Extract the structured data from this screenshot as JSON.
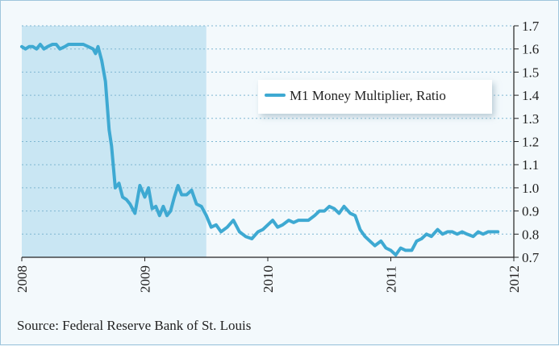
{
  "chart_data": {
    "type": "line",
    "series": [
      {
        "name": "M1 Money Multiplier, Ratio",
        "color": "#3ea9d2",
        "x": [
          2008.0,
          2008.03,
          2008.06,
          2008.09,
          2008.12,
          2008.15,
          2008.18,
          2008.21,
          2008.25,
          2008.28,
          2008.31,
          2008.35,
          2008.38,
          2008.42,
          2008.46,
          2008.5,
          2008.54,
          2008.58,
          2008.6,
          2008.62,
          2008.65,
          2008.68,
          2008.71,
          2008.73,
          2008.76,
          2008.79,
          2008.82,
          2008.85,
          2008.88,
          2008.92,
          2008.96,
          2009.0,
          2009.03,
          2009.06,
          2009.09,
          2009.12,
          2009.15,
          2009.18,
          2009.21,
          2009.24,
          2009.27,
          2009.3,
          2009.34,
          2009.38,
          2009.42,
          2009.46,
          2009.5,
          2009.54,
          2009.58,
          2009.62,
          2009.67,
          2009.72,
          2009.77,
          2009.82,
          2009.87,
          2009.92,
          2009.96,
          2010.0,
          2010.04,
          2010.08,
          2010.12,
          2010.17,
          2010.21,
          2010.25,
          2010.29,
          2010.33,
          2010.38,
          2010.42,
          2010.46,
          2010.5,
          2010.54,
          2010.58,
          2010.62,
          2010.67,
          2010.71,
          2010.75,
          2010.79,
          2010.83,
          2010.87,
          2010.92,
          2010.96,
          2011.0,
          2011.04,
          2011.08,
          2011.12,
          2011.17,
          2011.21,
          2011.25,
          2011.29,
          2011.33,
          2011.38,
          2011.42,
          2011.46,
          2011.5,
          2011.54,
          2011.58,
          2011.62,
          2011.67,
          2011.71,
          2011.75,
          2011.79,
          2011.83,
          2011.87
        ],
        "y": [
          1.61,
          1.6,
          1.61,
          1.61,
          1.6,
          1.62,
          1.6,
          1.61,
          1.62,
          1.62,
          1.6,
          1.61,
          1.62,
          1.62,
          1.62,
          1.62,
          1.61,
          1.6,
          1.58,
          1.61,
          1.55,
          1.46,
          1.25,
          1.18,
          1.0,
          1.02,
          0.96,
          0.95,
          0.93,
          0.89,
          1.01,
          0.96,
          1.0,
          0.91,
          0.92,
          0.88,
          0.92,
          0.88,
          0.9,
          0.96,
          1.01,
          0.97,
          0.97,
          0.99,
          0.93,
          0.92,
          0.88,
          0.83,
          0.84,
          0.81,
          0.83,
          0.86,
          0.81,
          0.79,
          0.78,
          0.81,
          0.82,
          0.84,
          0.86,
          0.83,
          0.84,
          0.86,
          0.85,
          0.86,
          0.86,
          0.86,
          0.88,
          0.9,
          0.9,
          0.92,
          0.91,
          0.89,
          0.92,
          0.89,
          0.88,
          0.82,
          0.79,
          0.77,
          0.75,
          0.77,
          0.74,
          0.73,
          0.71,
          0.74,
          0.73,
          0.73,
          0.77,
          0.78,
          0.8,
          0.79,
          0.82,
          0.8,
          0.81,
          0.81,
          0.8,
          0.81,
          0.8,
          0.79,
          0.81,
          0.8,
          0.81,
          0.81,
          0.81
        ]
      }
    ],
    "recession_shading": {
      "x_start": 2008.0,
      "x_end": 2009.5,
      "color": "#c9e6f3"
    },
    "xlim": [
      2008,
      2012
    ],
    "ylim": [
      0.7,
      1.7
    ],
    "x_ticks": [
      "2008",
      "2009",
      "2010",
      "2011",
      "2012"
    ],
    "y_ticks": [
      "0.7",
      "0.8",
      "0.9",
      "1.0",
      "1.1",
      "1.2",
      "1.3",
      "1.4",
      "1.5",
      "1.6",
      "1.7"
    ],
    "grid": "horizontal dashed",
    "legend_position": "top-right",
    "y_axis_side": "right",
    "source": "Source: Federal Reserve Bank of St. Louis"
  }
}
